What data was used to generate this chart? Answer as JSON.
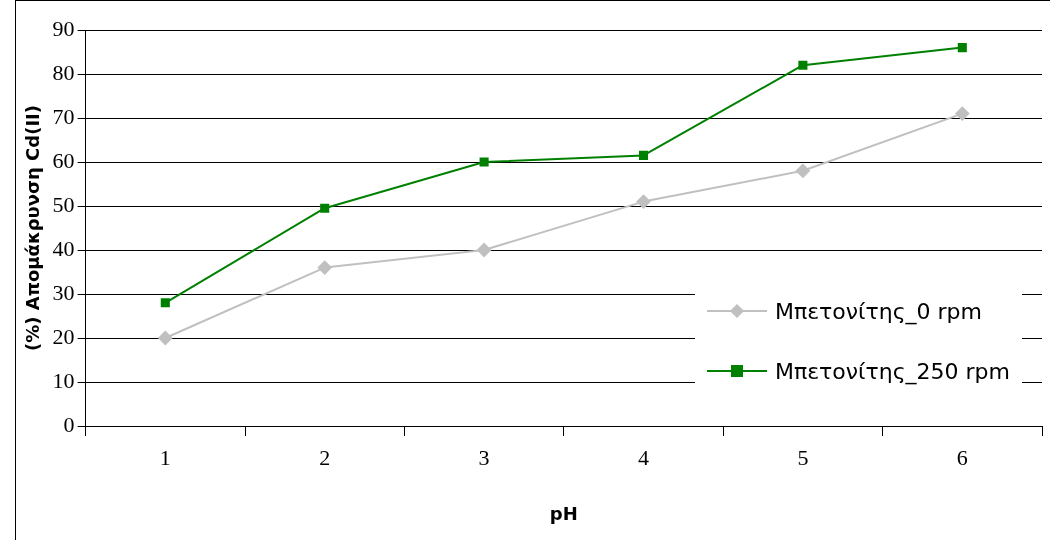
{
  "chart_data": {
    "type": "line",
    "xlabel": "pH",
    "ylabel": "(%) Απομάκρυνση Cd(II)",
    "categories": [
      "1",
      "2",
      "3",
      "4",
      "5",
      "6"
    ],
    "series": [
      {
        "name": "Μπετονίτης_0 rpm",
        "color": "#c0c0c0",
        "marker": "diamond",
        "values": [
          20,
          36,
          40,
          51,
          58,
          71
        ]
      },
      {
        "name": "Μπετονίτης_250 rpm",
        "color": "#008000",
        "marker": "square",
        "values": [
          28,
          49.5,
          60,
          61.5,
          82,
          86
        ]
      }
    ],
    "ylim": [
      0,
      90
    ],
    "yticks": [
      0,
      10,
      20,
      30,
      40,
      50,
      60,
      70,
      80,
      90
    ],
    "grid": "y",
    "legend": "bottom right"
  }
}
